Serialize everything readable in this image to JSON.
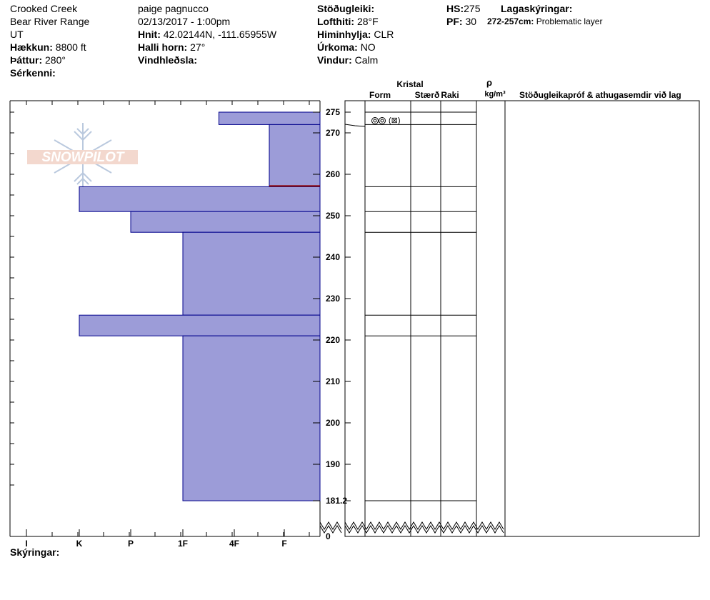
{
  "site": {
    "location": "Crooked Creek",
    "range": "Bear River Range",
    "state": "UT",
    "elevation_label": "Hækkun:",
    "elevation_value": "8800 ft",
    "aspect_label": "Þáttur:",
    "aspect_value": "280°",
    "features_label": "Sérkenni:"
  },
  "observer": {
    "name": "paige pagnucco",
    "datetime": "02/13/2017 - 1:00pm",
    "coords_label": "Hnit:",
    "coords_value": "42.02144N, -111.65955W",
    "slope_label": "Halli horn:",
    "slope_value": "27°",
    "wind_loading_label": "Vindhleðsla:"
  },
  "conditions": {
    "stability_label": "Stöðugleiki:",
    "air_temp_label": "Lofthiti:",
    "air_temp_value": "28°F",
    "sky_label": "Himinhylja:",
    "sky_value": "CLR",
    "precip_label": "Úrkoma:",
    "precip_value": "NO",
    "wind_label": "Vindur:",
    "wind_value": "Calm"
  },
  "depths": {
    "hs_label": "HS:",
    "hs_value": "275",
    "pf_label": "PF:",
    "pf_value": "30",
    "layers_label": "Lagaskýringar:",
    "problem_range": "272-257cm:",
    "problem_text": "Problematic layer"
  },
  "columns": {
    "crystal": "Kristal",
    "form": "Form",
    "size": "Stærð",
    "moisture": "Raki",
    "rho": "ρ",
    "density_unit": "kg/m³",
    "tests": "Stöðugleikapróf & athugasemdir við lag"
  },
  "legend_label": "Skýringar:",
  "logo_text": "SNOWPILOT",
  "grain_annotation": "(⊠)",
  "colors": {
    "layer_fill": "#9c9cd8",
    "layer_stroke": "#00008b",
    "problem_line": "#8b0000"
  },
  "chart_data": {
    "type": "bar",
    "orientation": "horizontal",
    "y_axis": "snow depth (cm)",
    "x_axis_hardness_ticks": [
      "I",
      "K",
      "P",
      "1F",
      "4F",
      "F"
    ],
    "y_tick_labels": [
      "275",
      "270",
      "260",
      "250",
      "240",
      "230",
      "220",
      "210",
      "200",
      "190",
      "181.2",
      "0"
    ],
    "y_ticks": [
      275,
      270,
      260,
      250,
      240,
      230,
      220,
      210,
      200,
      190,
      181.2,
      0
    ],
    "depth_range_shown": [
      181.2,
      275
    ],
    "layers": [
      {
        "top": 275,
        "bottom": 272,
        "hardness": "4F+"
      },
      {
        "top": 272,
        "bottom": 257,
        "hardness": "F+"
      },
      {
        "top": 257,
        "bottom": 251,
        "hardness": "K"
      },
      {
        "top": 251,
        "bottom": 246,
        "hardness": "P"
      },
      {
        "top": 246,
        "bottom": 226,
        "hardness": "1F"
      },
      {
        "top": 226,
        "bottom": 221,
        "hardness": "K"
      },
      {
        "top": 221,
        "bottom": 181.2,
        "hardness": "1F"
      }
    ],
    "problematic_layer": {
      "top": 272,
      "bottom": 257
    }
  }
}
